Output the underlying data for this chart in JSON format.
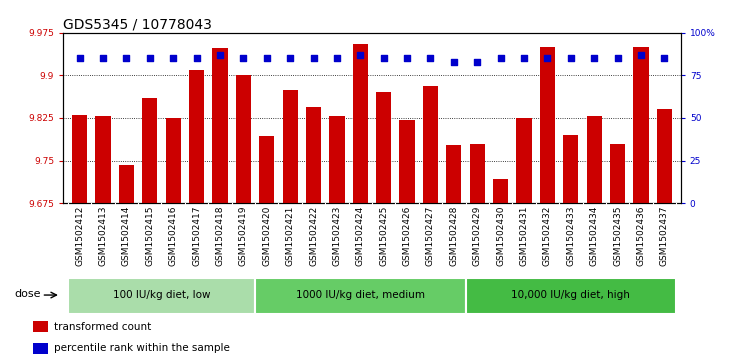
{
  "title": "GDS5345 / 10778043",
  "samples": [
    "GSM1502412",
    "GSM1502413",
    "GSM1502414",
    "GSM1502415",
    "GSM1502416",
    "GSM1502417",
    "GSM1502418",
    "GSM1502419",
    "GSM1502420",
    "GSM1502421",
    "GSM1502422",
    "GSM1502423",
    "GSM1502424",
    "GSM1502425",
    "GSM1502426",
    "GSM1502427",
    "GSM1502428",
    "GSM1502429",
    "GSM1502430",
    "GSM1502431",
    "GSM1502432",
    "GSM1502433",
    "GSM1502434",
    "GSM1502435",
    "GSM1502436",
    "GSM1502437"
  ],
  "bar_values": [
    9.83,
    9.828,
    9.742,
    9.86,
    9.825,
    9.91,
    9.948,
    9.9,
    9.793,
    9.875,
    9.845,
    9.828,
    9.955,
    9.87,
    9.822,
    9.882,
    9.777,
    9.78,
    9.718,
    9.825,
    9.95,
    9.795,
    9.828,
    9.78,
    9.95,
    9.84
  ],
  "percentile_values": [
    85,
    85,
    85,
    85,
    85,
    85,
    87,
    85,
    85,
    85,
    85,
    85,
    87,
    85,
    85,
    85,
    83,
    83,
    85,
    85,
    85,
    85,
    85,
    85,
    87,
    85
  ],
  "ymin": 9.675,
  "ymax": 9.975,
  "yticks": [
    9.675,
    9.75,
    9.825,
    9.9,
    9.975
  ],
  "ytick_labels": [
    "9.675",
    "9.75",
    "9.825",
    "9.9",
    "9.975"
  ],
  "right_yticks": [
    0,
    25,
    50,
    75,
    100
  ],
  "right_ytick_labels": [
    "0",
    "25",
    "50",
    "75",
    "100%"
  ],
  "bar_color": "#cc0000",
  "dot_color": "#0000cc",
  "xticklabel_bg": "#c8c8c8",
  "plot_bg": "#ffffff",
  "figure_bg": "#ffffff",
  "groups": [
    {
      "label": "100 IU/kg diet, low",
      "start": 0,
      "end": 7,
      "color": "#aaddaa"
    },
    {
      "label": "1000 IU/kg diet, medium",
      "start": 8,
      "end": 16,
      "color": "#66cc66"
    },
    {
      "label": "10,000 IU/kg diet, high",
      "start": 17,
      "end": 25,
      "color": "#44bb44"
    }
  ],
  "dose_label": "dose",
  "legend_items": [
    {
      "label": "transformed count",
      "color": "#cc0000"
    },
    {
      "label": "percentile rank within the sample",
      "color": "#0000cc"
    }
  ],
  "title_fontsize": 10,
  "tick_fontsize": 6.5,
  "group_fontsize": 7.5,
  "bar_width": 0.65
}
